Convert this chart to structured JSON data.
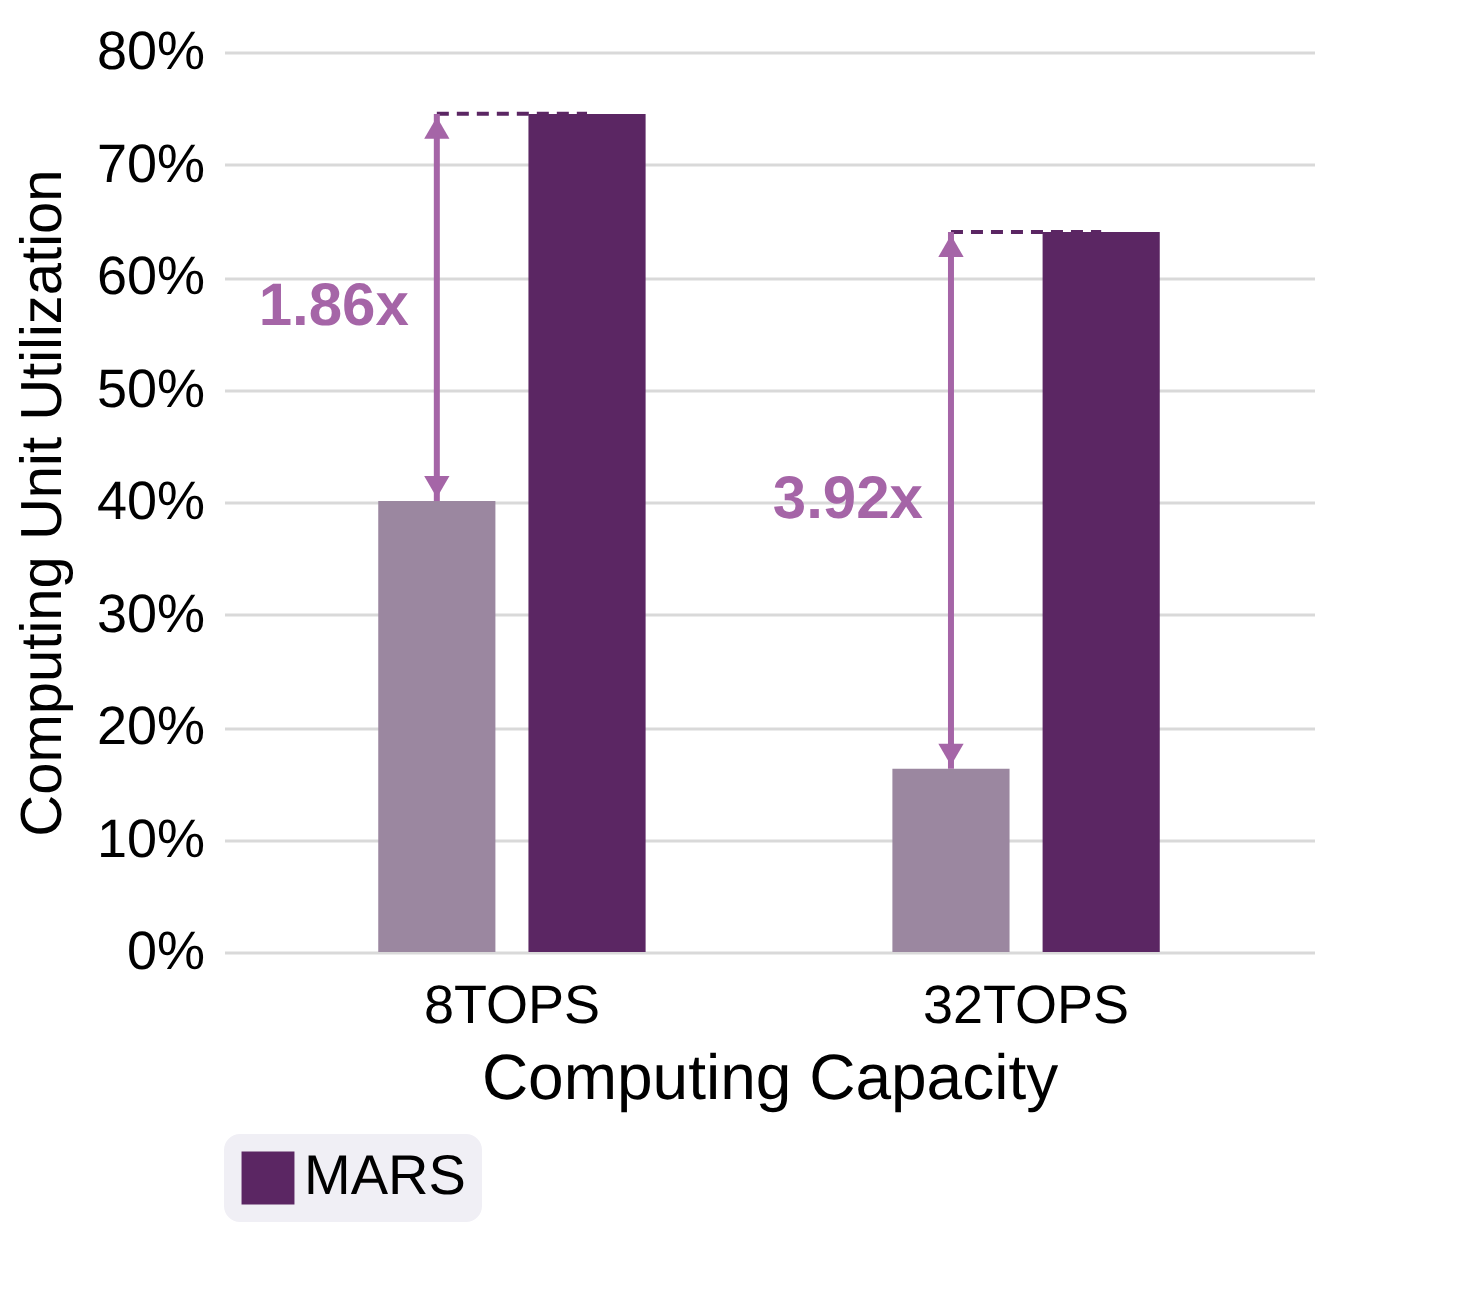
{
  "chart_data": {
    "type": "bar",
    "xlabel": "Computing Capacity",
    "ylabel": "Computing Unit Utilization",
    "categories": [
      "8TOPS",
      "32TOPS"
    ],
    "series": [
      {
        "color": "#9b87a0",
        "values": [
          40.1,
          16.3
        ]
      },
      {
        "name": "MARS",
        "color": "#5b2663",
        "values": [
          74.5,
          64.0
        ]
      }
    ],
    "ylim": [
      0,
      80
    ],
    "yticks": [
      {
        "value": 0,
        "label": "0%"
      },
      {
        "value": 10,
        "label": "10%"
      },
      {
        "value": 20,
        "label": "20%"
      },
      {
        "value": 30,
        "label": "30%"
      },
      {
        "value": 40,
        "label": "40%"
      },
      {
        "value": 50,
        "label": "50%"
      },
      {
        "value": 60,
        "label": "60%"
      },
      {
        "value": 70,
        "label": "70%"
      },
      {
        "value": 80,
        "label": "80%"
      }
    ],
    "grid": "y",
    "legend": "bottom",
    "annotations": [
      "1.86x",
      "3.92x"
    ]
  }
}
